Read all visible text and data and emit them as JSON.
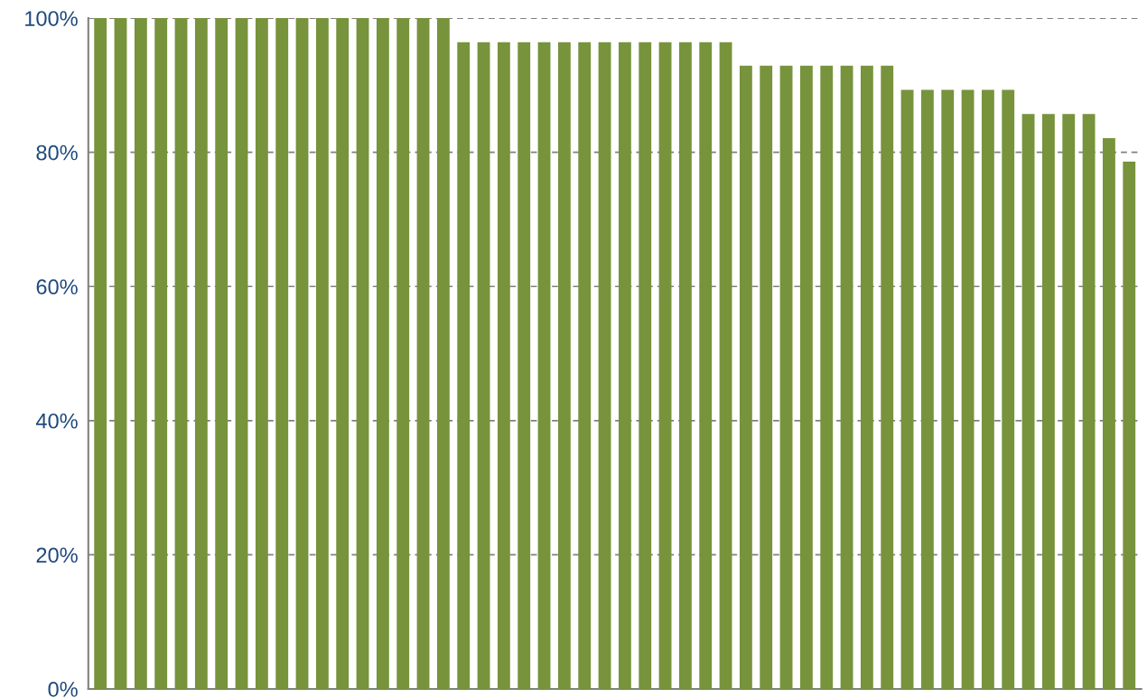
{
  "chart_data": {
    "type": "bar",
    "categories": [
      null,
      null,
      null,
      null,
      null,
      null,
      null,
      null,
      null,
      null,
      null,
      null,
      null,
      null,
      null,
      null,
      null,
      null,
      null,
      null,
      null,
      null,
      null,
      null,
      null,
      null,
      null,
      null,
      null,
      null,
      null,
      null,
      null,
      null,
      null,
      null,
      null,
      null,
      null,
      null,
      null,
      null,
      null,
      null,
      null,
      null,
      null,
      null,
      null,
      null,
      null,
      null
    ],
    "values": [
      100,
      100,
      100,
      100,
      100,
      100,
      100,
      100,
      100,
      100,
      100,
      100,
      100,
      100,
      100,
      100,
      100,
      100,
      96.4,
      96.4,
      96.4,
      96.4,
      96.4,
      96.4,
      96.4,
      96.4,
      96.4,
      96.4,
      96.4,
      96.4,
      96.4,
      96.4,
      92.9,
      92.9,
      92.9,
      92.9,
      92.9,
      92.9,
      92.9,
      92.9,
      89.3,
      89.3,
      89.3,
      89.3,
      89.3,
      89.3,
      85.7,
      85.7,
      85.7,
      85.7,
      82.1,
      78.6
    ],
    "color": "#77933c",
    "ylim": [
      0,
      100
    ],
    "yticks": [
      {
        "value": 0,
        "label": "0%"
      },
      {
        "value": 20,
        "label": "20%"
      },
      {
        "value": 40,
        "label": "40%"
      },
      {
        "value": 60,
        "label": "60%"
      },
      {
        "value": 80,
        "label": "80%"
      },
      {
        "value": 100,
        "label": "100%"
      }
    ],
    "grid": "y",
    "tick_labels": "y"
  }
}
